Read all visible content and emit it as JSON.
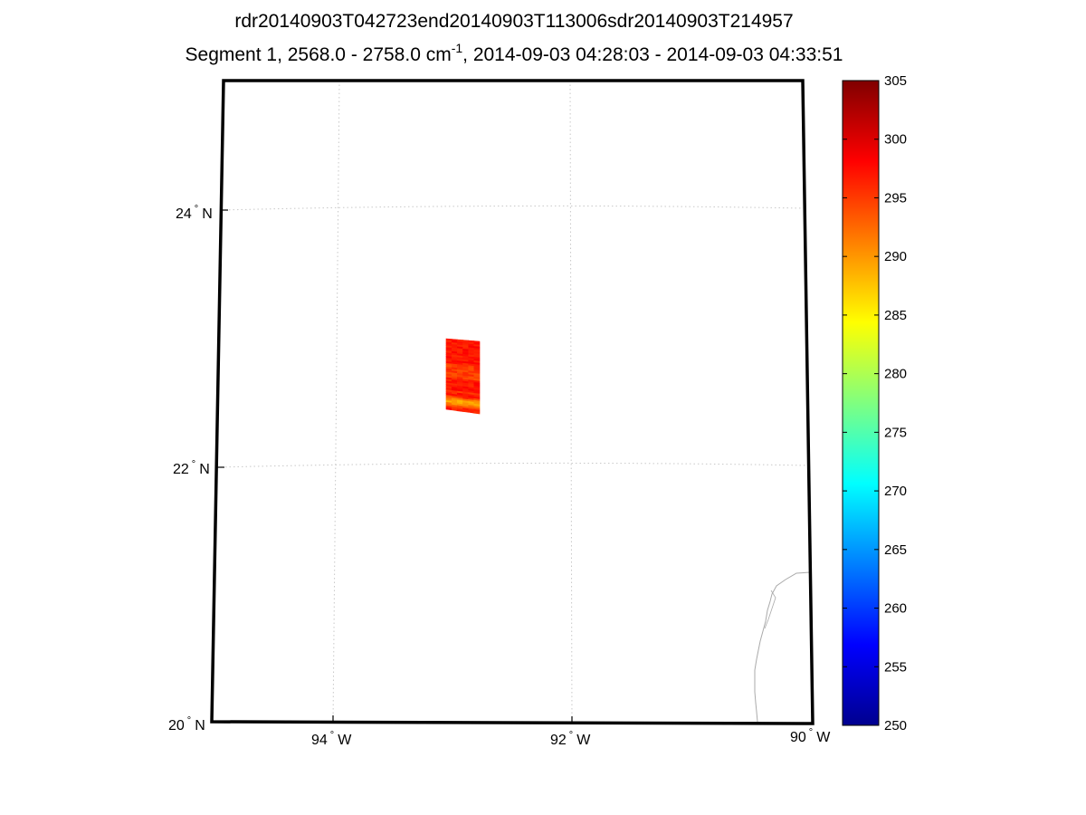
{
  "title": {
    "line1": "rdr20140903T042723end20140903T113006sdr20140903T214957",
    "line2_prefix": "Segment 1, 2568.0 - 2758.0 cm",
    "line2_superscript": "-1",
    "line2_suffix": ", 2014-09-03 04:28:03 - 2014-09-03 04:33:51"
  },
  "map": {
    "projection": "conic",
    "lon_range": [
      -95,
      -90
    ],
    "lat_range": [
      20,
      25
    ],
    "grid": true,
    "grid_style": "dotted",
    "lat_ticks": [
      {
        "label": "24",
        "deg": "°",
        "hemi": "N"
      },
      {
        "label": "22",
        "deg": "°",
        "hemi": "N"
      },
      {
        "label": "20",
        "deg": "°",
        "hemi": "N"
      }
    ],
    "lon_ticks": [
      {
        "label": "94",
        "deg": "°",
        "hemi": "W"
      },
      {
        "label": "92",
        "deg": "°",
        "hemi": "W"
      },
      {
        "label": "90",
        "deg": "°",
        "hemi": "W"
      }
    ],
    "coastline_color": "#aaaaaa",
    "swath": {
      "description": "brightness temperature granule",
      "dominant_value": 297,
      "min_value": 286,
      "max_value": 299
    }
  },
  "colorbar": {
    "colormap": "jet",
    "min": 250,
    "max": 305,
    "ticks": [
      "305",
      "300",
      "295",
      "290",
      "285",
      "280",
      "275",
      "270",
      "265",
      "260",
      "255",
      "250"
    ]
  }
}
